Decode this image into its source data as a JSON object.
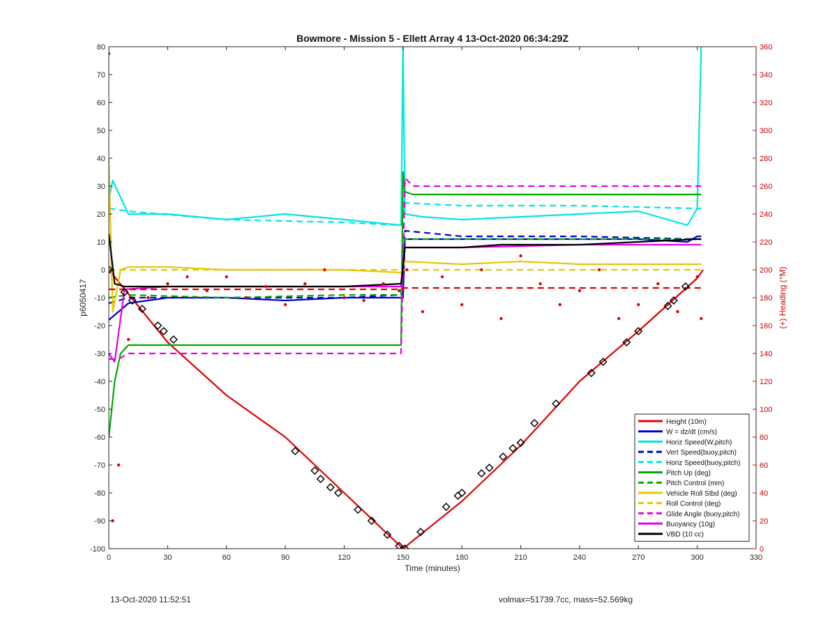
{
  "chart_data": {
    "type": "line",
    "title": "Bowmore - Mission 5 - Ellett Array 4 13-Oct-2020 06:34:29Z",
    "xlabel": "Time (minutes)",
    "ylabel_left": "p6050417",
    "ylabel_right": "(+) Heading (°M)",
    "xlim": [
      0,
      330
    ],
    "ylim_left": [
      -100,
      80
    ],
    "ylim_right": [
      0,
      360
    ],
    "xticks": [
      0,
      30,
      60,
      90,
      120,
      150,
      180,
      210,
      240,
      270,
      300,
      330
    ],
    "yticks_left": [
      -100,
      -90,
      -80,
      -70,
      -60,
      -50,
      -40,
      -30,
      -20,
      -10,
      0,
      10,
      20,
      30,
      40,
      50,
      60,
      70,
      80
    ],
    "yticks_right": [
      0,
      20,
      40,
      60,
      80,
      100,
      120,
      140,
      160,
      180,
      200,
      220,
      240,
      260,
      280,
      300,
      320,
      340,
      360
    ],
    "grid": false,
    "legend_position": "bottom-right",
    "series": [
      {
        "name": "Height (10m)",
        "color": "#e00000",
        "style": "solid",
        "axis": "left",
        "x": [
          0,
          30,
          60,
          90,
          120,
          150,
          180,
          210,
          240,
          270,
          300,
          303
        ],
        "y": [
          0,
          -26,
          -45,
          -60,
          -80,
          -100,
          -83,
          -63,
          -40,
          -22,
          -3,
          0
        ]
      },
      {
        "name": "W = dz/dt (cm/s)",
        "color": "#0000cc",
        "style": "solid",
        "axis": "left",
        "x": [
          0,
          5,
          10,
          30,
          60,
          90,
          120,
          149,
          150,
          151,
          160,
          180,
          210,
          240,
          270,
          295,
          300,
          302
        ],
        "y": [
          -18,
          -15,
          -12,
          -10,
          -10,
          -11,
          -10,
          -10,
          -10,
          11,
          11,
          11,
          11,
          11,
          11,
          10,
          12,
          12
        ]
      },
      {
        "name": "Horiz Speed(W,pitch)",
        "color": "#00e5e5",
        "style": "solid",
        "axis": "left",
        "x": [
          0,
          2,
          10,
          30,
          60,
          90,
          120,
          149,
          150,
          151,
          160,
          180,
          210,
          240,
          270,
          295,
          300,
          302
        ],
        "y": [
          25,
          32,
          20,
          20,
          18,
          20,
          18,
          16,
          80,
          20,
          19,
          18,
          19,
          20,
          21,
          16,
          22,
          80
        ]
      },
      {
        "name": "Vert Speed(buoy,pitch)",
        "color": "#0000cc",
        "style": "dashed",
        "axis": "left",
        "x": [
          0,
          10,
          60,
          120,
          149,
          151,
          180,
          240,
          300,
          302
        ],
        "y": [
          -12,
          -10,
          -10,
          -10,
          -9,
          14,
          12,
          12,
          11,
          11
        ]
      },
      {
        "name": "Horiz Speed(buoy,pitch)",
        "color": "#00e5e5",
        "style": "dashed",
        "axis": "left",
        "x": [
          0,
          10,
          60,
          120,
          149,
          151,
          180,
          240,
          300,
          302
        ],
        "y": [
          22,
          21,
          18,
          17,
          16,
          24,
          23,
          23,
          22,
          22
        ]
      },
      {
        "name": "Pitch Up (deg)",
        "color": "#00aa00",
        "style": "solid",
        "axis": "left",
        "x": [
          0,
          3,
          6,
          10,
          30,
          60,
          90,
          120,
          149,
          150,
          151,
          155,
          180,
          210,
          240,
          270,
          300,
          302
        ],
        "y": [
          -60,
          -40,
          -30,
          -27,
          -27,
          -27,
          -27,
          -27,
          -27,
          35,
          28,
          27,
          27,
          27,
          27,
          27,
          27,
          27
        ]
      },
      {
        "name": "Pitch Control (mm)",
        "color": "#00aa00",
        "style": "dashed",
        "axis": "left",
        "x": [
          0,
          10,
          60,
          120,
          149,
          151,
          180,
          240,
          300,
          302
        ],
        "y": [
          -10,
          -9,
          -10,
          -9,
          -9,
          11,
          11,
          11,
          11,
          11
        ]
      },
      {
        "name": "Vehicle Roll Stbd (deg)",
        "color": "#e6c800",
        "style": "solid",
        "axis": "left",
        "x": [
          0,
          2,
          6,
          10,
          30,
          60,
          90,
          120,
          149,
          151,
          180,
          210,
          240,
          270,
          300,
          302
        ],
        "y": [
          40,
          -15,
          0,
          1,
          1,
          0,
          0,
          0,
          -1,
          3,
          2,
          3,
          2,
          2,
          2,
          2
        ]
      },
      {
        "name": "Roll Control (deg)",
        "color": "#e6c800",
        "style": "dashed",
        "axis": "left",
        "x": [
          0,
          10,
          60,
          120,
          149,
          151,
          180,
          240,
          300,
          302
        ],
        "y": [
          0,
          0,
          0,
          0,
          0,
          0,
          0,
          0,
          0,
          0
        ]
      },
      {
        "name": "Glide Angle (buoy,pitch)",
        "color": "#e600e6",
        "style": "dashed",
        "axis": "left",
        "x": [
          0,
          5,
          10,
          30,
          60,
          90,
          120,
          149,
          151,
          155,
          180,
          240,
          300,
          302
        ],
        "y": [
          -32,
          -32,
          -30,
          -30,
          -30,
          -30,
          -30,
          -30,
          33,
          30,
          30,
          30,
          30,
          30
        ]
      },
      {
        "name": "Buoyancy (10g)",
        "color": "#e600e6",
        "style": "solid",
        "axis": "left",
        "x": [
          0,
          3,
          8,
          30,
          60,
          90,
          120,
          149,
          151,
          180,
          240,
          300,
          302
        ],
        "y": [
          -30,
          -33,
          -7,
          -6,
          -6,
          -6,
          -6,
          -6,
          8,
          8,
          9,
          9,
          9
        ]
      },
      {
        "name": "VBD (10 cc)",
        "color": "#000000",
        "style": "solid",
        "axis": "left",
        "x": [
          0,
          3,
          8,
          30,
          60,
          90,
          120,
          149,
          151,
          180,
          200,
          240,
          300,
          302
        ],
        "y": [
          13,
          -5,
          -6,
          -6,
          -6,
          -6,
          -6,
          -5,
          8,
          8,
          9,
          9,
          11,
          11
        ]
      },
      {
        "name": "Heading",
        "color": "#e00000",
        "style": "dots",
        "axis": "right",
        "x": [
          0,
          2,
          5,
          10,
          20,
          30,
          40,
          50,
          60,
          70,
          80,
          90,
          100,
          110,
          120,
          130,
          140,
          148,
          152,
          160,
          170,
          180,
          190,
          200,
          210,
          220,
          230,
          240,
          250,
          260,
          270,
          280,
          290,
          300,
          302
        ],
        "y": [
          355,
          20,
          60,
          150,
          180,
          190,
          195,
          185,
          195,
          180,
          188,
          175,
          190,
          200,
          180,
          178,
          190,
          185,
          200,
          170,
          195,
          175,
          200,
          165,
          210,
          190,
          175,
          185,
          200,
          165,
          175,
          190,
          170,
          195,
          165
        ]
      },
      {
        "name": "",
        "color": "#e00000",
        "style": "dashed",
        "axis": "right",
        "x": [
          0,
          148,
          151,
          302
        ],
        "y": [
          186,
          186,
          187,
          187
        ]
      }
    ],
    "markers": {
      "color": "#000000",
      "x": [
        0,
        8,
        12,
        17,
        25,
        28,
        33,
        95,
        105,
        108,
        113,
        117,
        127,
        134,
        142,
        148,
        151,
        159,
        172,
        178,
        180,
        190,
        194,
        201,
        206,
        210,
        217,
        228,
        246,
        252,
        264,
        270,
        285,
        288,
        294
      ],
      "y": [
        0,
        -8,
        -11,
        -14,
        -20,
        -22,
        -25,
        -65,
        -72,
        -75,
        -78,
        -80,
        -86,
        -90,
        -95,
        -99,
        -100,
        -94,
        -85,
        -81,
        -80,
        -73,
        -71,
        -67,
        -64,
        -62,
        -55,
        -48,
        -37,
        -33,
        -26,
        -22,
        -13,
        -11,
        -6
      ]
    }
  },
  "footer": {
    "left": "13-Oct-2020 11:52:51",
    "right": "volmax=51739.7cc, mass=52.569kg"
  }
}
